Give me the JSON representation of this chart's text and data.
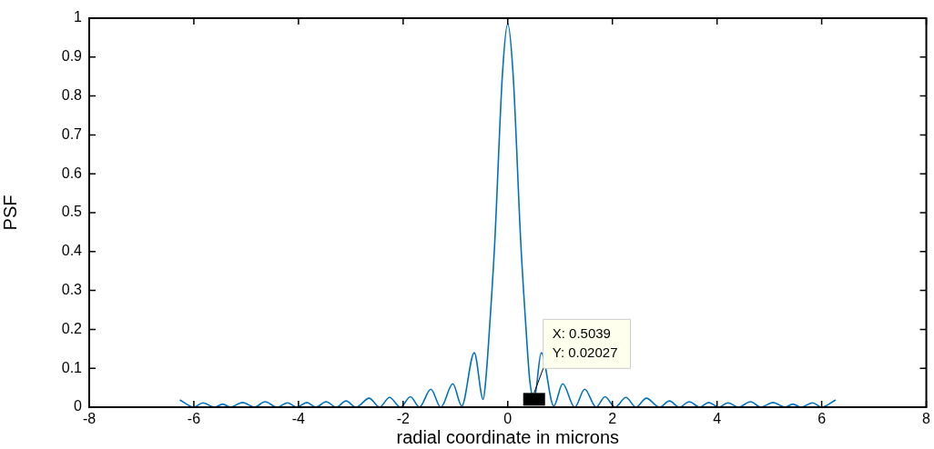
{
  "chart_data": {
    "type": "line",
    "xlabel": "radial coordinate in microns",
    "ylabel": "PSF",
    "series": [
      {
        "color": "#0072bd",
        "x": [
          -6.26,
          -6.0,
          -5.83,
          -5.6,
          -5.45,
          -5.3,
          -5.07,
          -4.84,
          -4.64,
          -4.41,
          -4.21,
          -4.03,
          -3.84,
          -3.67,
          -3.47,
          -3.28,
          -3.09,
          -2.9,
          -2.65,
          -2.45,
          -2.26,
          -2.05,
          -1.86,
          -1.69,
          -1.47,
          -1.28,
          -1.05,
          -0.88,
          -0.64,
          -0.47,
          -0.42,
          -0.35,
          -0.25,
          -0.1,
          0,
          0.1,
          0.25,
          0.35,
          0.42,
          0.5039,
          0.64,
          0.88,
          1.05,
          1.28,
          1.47,
          1.69,
          1.86,
          2.05,
          2.26,
          2.45,
          2.65,
          2.9,
          3.09,
          3.28,
          3.47,
          3.67,
          3.84,
          4.03,
          4.21,
          4.41,
          4.64,
          4.84,
          5.07,
          5.3,
          5.45,
          5.6,
          5.83,
          6.0,
          6.26
        ],
        "values": [
          0.018,
          0.0,
          0.011,
          0.0,
          0.008,
          0.0,
          0.012,
          0.0,
          0.014,
          0.0,
          0.011,
          0.0,
          0.012,
          0.0,
          0.014,
          0.0,
          0.016,
          0.0,
          0.023,
          0.0,
          0.025,
          0.0,
          0.027,
          0.0,
          0.046,
          0.0,
          0.06,
          0.003,
          0.14,
          0.02,
          0.07,
          0.2,
          0.42,
          0.86,
          0.985,
          0.86,
          0.42,
          0.2,
          0.07,
          0.02,
          0.14,
          0.003,
          0.06,
          0.0,
          0.046,
          0.0,
          0.027,
          0.0,
          0.025,
          0.0,
          0.023,
          0.0,
          0.016,
          0.0,
          0.014,
          0.0,
          0.012,
          0.0,
          0.011,
          0.0,
          0.014,
          0.0,
          0.012,
          0.0,
          0.008,
          0.0,
          0.011,
          0.0,
          0.018
        ]
      }
    ],
    "xlim": [
      -8,
      8
    ],
    "xticks": [
      -8,
      -6,
      -4,
      -2,
      0,
      2,
      4,
      6,
      8
    ],
    "ylim": [
      0,
      1
    ],
    "yticks": [
      0,
      0.1,
      0.2,
      0.3,
      0.4,
      0.5,
      0.6,
      0.7,
      0.8,
      0.9,
      1
    ],
    "grid": false,
    "legend": false,
    "marker": "none",
    "line_style": "solid",
    "annotations": [
      {
        "text": "X: 0.5039\nY: 0.02027",
        "x": 0.5039,
        "y": 0.02027
      }
    ]
  }
}
